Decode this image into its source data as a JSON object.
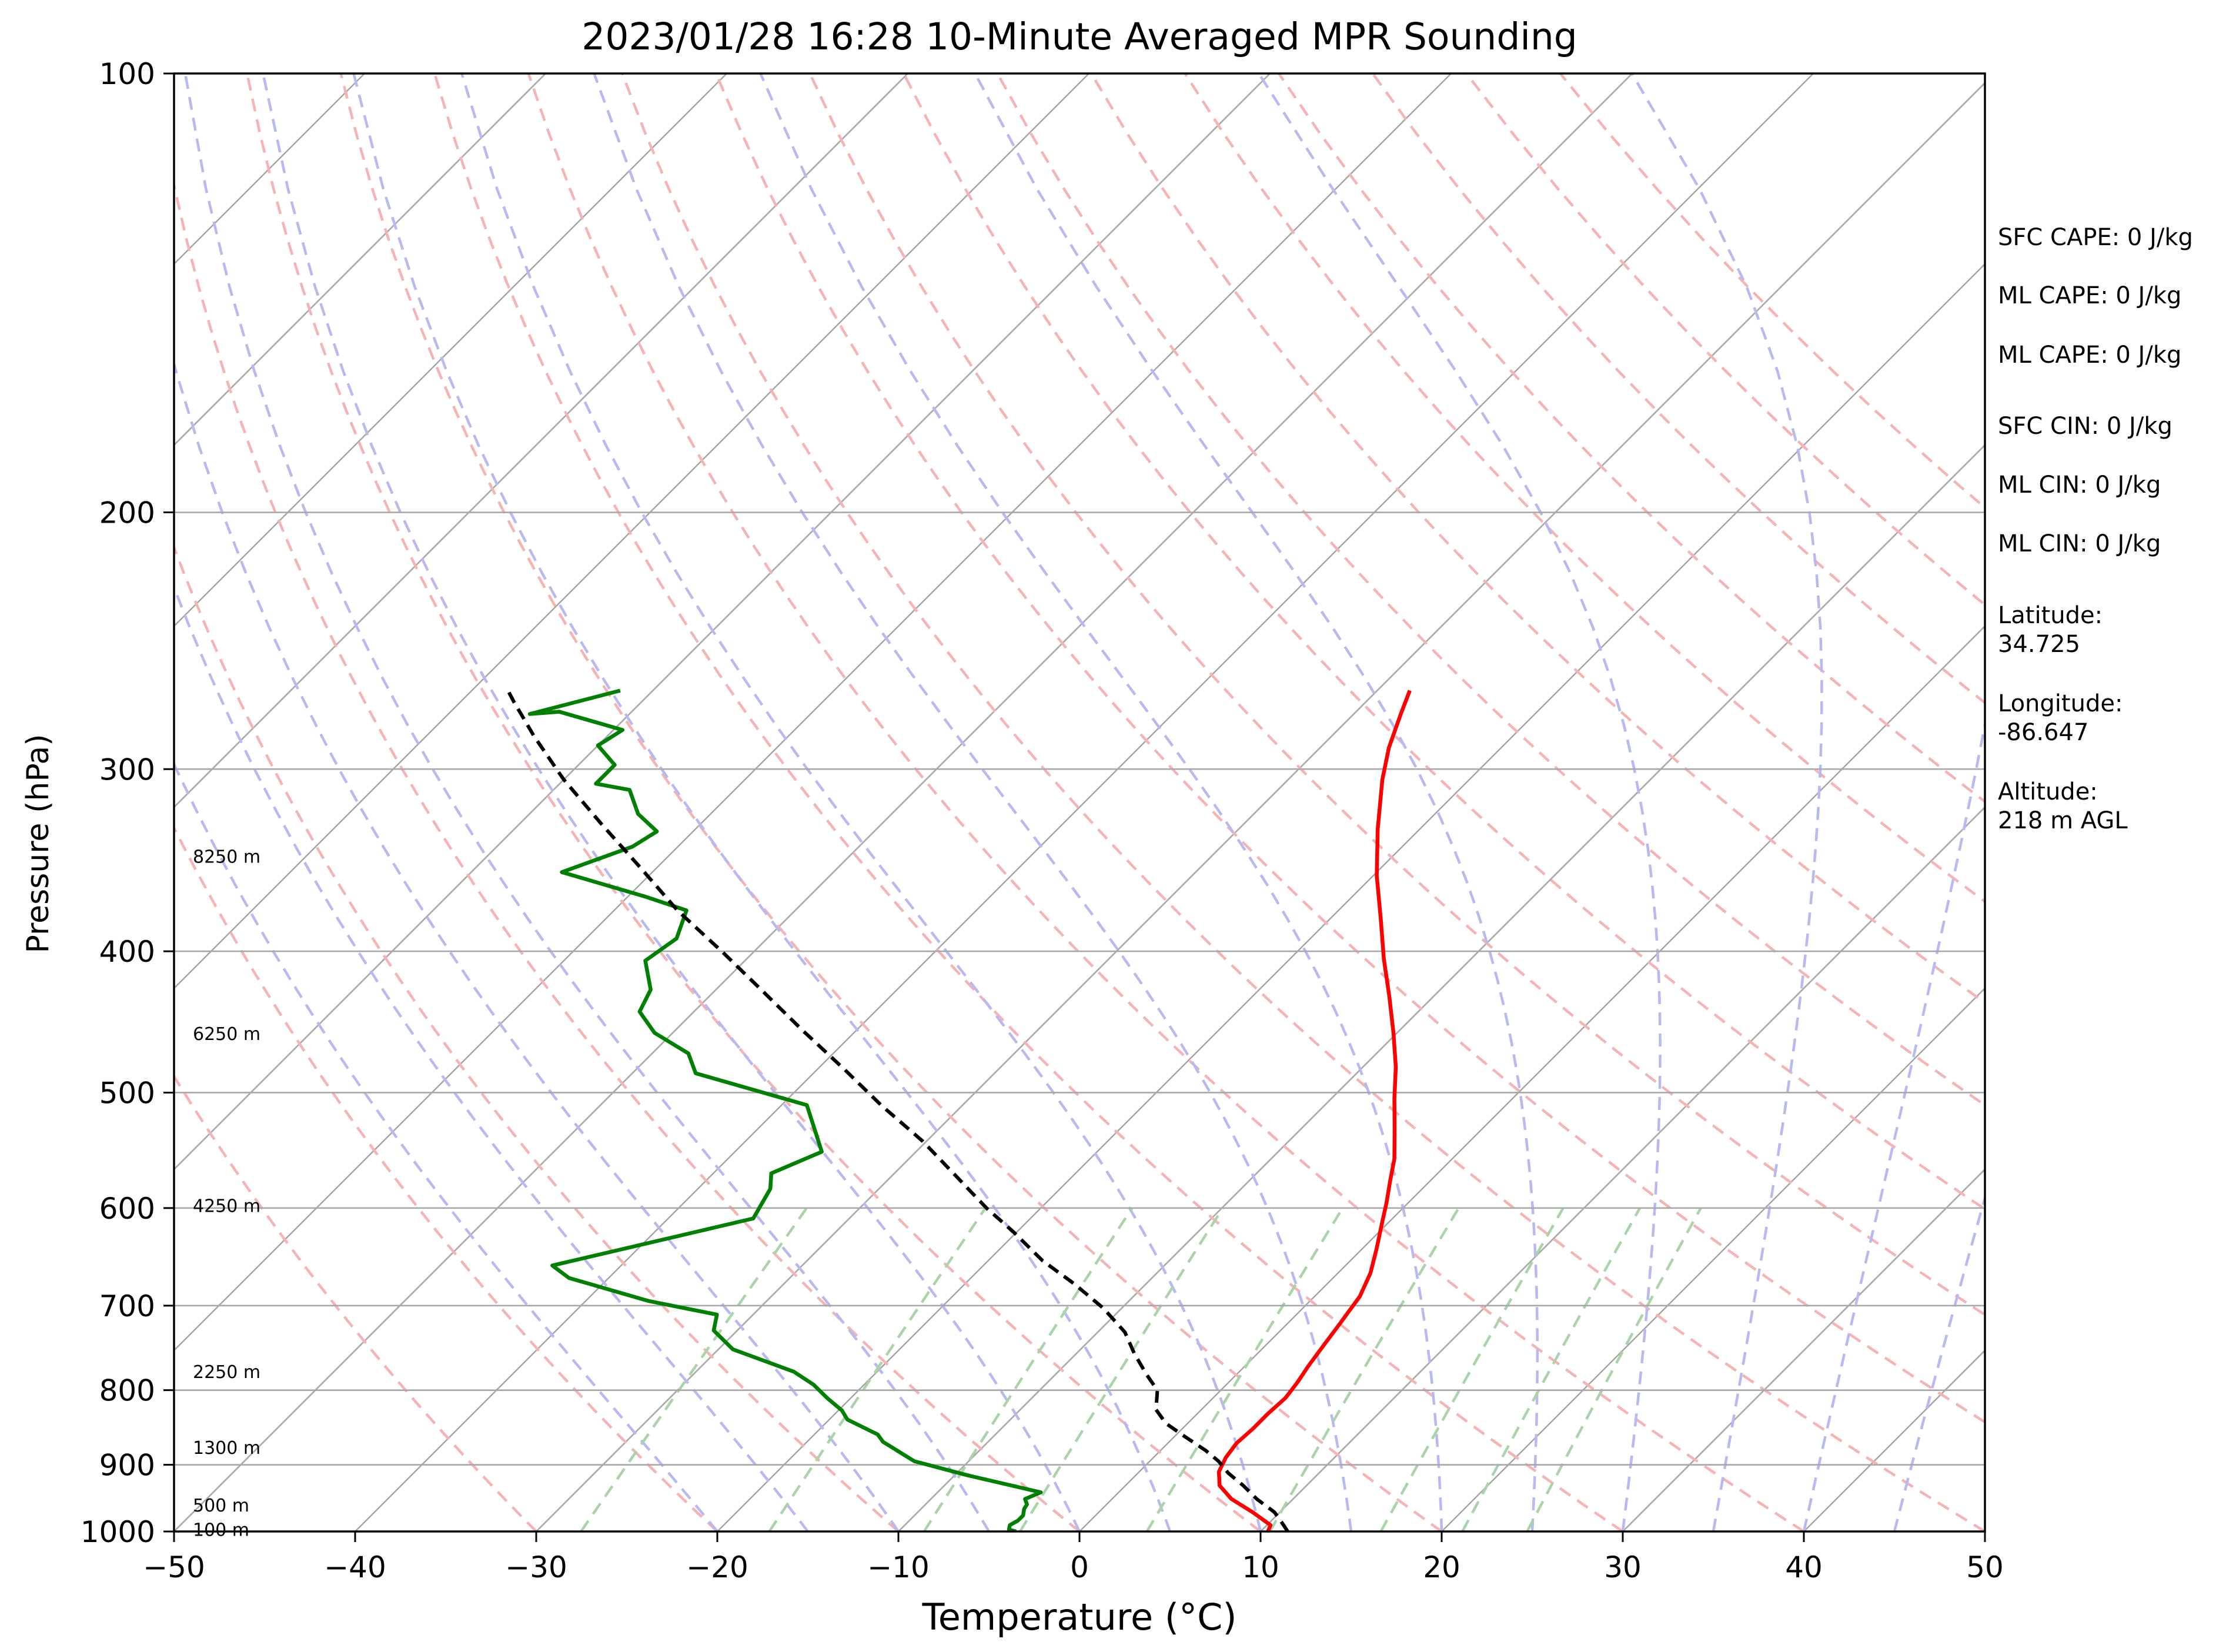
{
  "chart_data": {
    "type": "line",
    "title": "2023/01/28 16:28 10-Minute Averaged MPR Sounding",
    "xlabel": "Temperature (°C)",
    "ylabel": "Pressure (hPa)",
    "xlim": [
      -50,
      50
    ],
    "ylim": [
      1000,
      100
    ],
    "y_scale": "log",
    "x_ticks": [
      -50,
      -40,
      -30,
      -20,
      -10,
      0,
      10,
      20,
      30,
      40,
      50
    ],
    "y_ticks": [
      100,
      200,
      300,
      400,
      500,
      600,
      700,
      800,
      900,
      1000
    ],
    "x_tick_labels": [
      "−50",
      "−40",
      "−30",
      "−20",
      "−10",
      "0",
      "10",
      "20",
      "30",
      "40",
      "50"
    ],
    "y_tick_labels": [
      "100",
      "200",
      "300",
      "400",
      "500",
      "600",
      "700",
      "800",
      "900",
      "1000"
    ],
    "skew_deg": 45,
    "grid": true,
    "reference_lines": {
      "isotherms_c": [
        -120,
        -110,
        -100,
        -90,
        -80,
        -70,
        -60,
        -50,
        -40,
        -30,
        -20,
        -10,
        0,
        10,
        20,
        30,
        40,
        50
      ],
      "dry_adiabats_c": [
        -30,
        -20,
        -10,
        0,
        10,
        20,
        30,
        40,
        50,
        60,
        70,
        80,
        90,
        100,
        110,
        120,
        130,
        140,
        150
      ],
      "moist_adiabats_c": [
        -20,
        -15,
        -10,
        -5,
        0,
        5,
        10,
        15,
        20,
        25,
        30,
        35,
        40,
        45
      ],
      "mixing_ratios_gkg": [
        0.4,
        1,
        2,
        3,
        5,
        8,
        12,
        16,
        20
      ],
      "colors": {
        "isotherm": "#a8a8a8",
        "dry_adiabat": "#f5b3b3",
        "moist_adiabat": "#b8b8f2",
        "mixing_ratio": "#a9d4a9"
      }
    },
    "series": [
      {
        "role": "temperature",
        "color": "#ff0000",
        "points": [
          [
            10.4,
            1000
          ],
          [
            10.2,
            990
          ],
          [
            8.5,
            970
          ],
          [
            6.6,
            950
          ],
          [
            5.2,
            930
          ],
          [
            4.4,
            910
          ],
          [
            4.0,
            890
          ],
          [
            3.8,
            870
          ],
          [
            3.9,
            850
          ],
          [
            3.9,
            830
          ],
          [
            4.0,
            810
          ],
          [
            3.8,
            790
          ],
          [
            3.5,
            770
          ],
          [
            3.2,
            745
          ],
          [
            2.9,
            720
          ],
          [
            2.5,
            690
          ],
          [
            1.8,
            665
          ],
          [
            0.8,
            640
          ],
          [
            -0.3,
            615
          ],
          [
            -1.2,
            595
          ],
          [
            -2.2,
            575
          ],
          [
            -3.2,
            555
          ],
          [
            -4.8,
            530
          ],
          [
            -6.5,
            505
          ],
          [
            -8.2,
            480
          ],
          [
            -10.2,
            455
          ],
          [
            -12.4,
            430
          ],
          [
            -14.8,
            405
          ],
          [
            -17.2,
            380
          ],
          [
            -19.8,
            355
          ],
          [
            -22.3,
            330
          ],
          [
            -24.8,
            305
          ],
          [
            -26.2,
            290
          ],
          [
            -27.4,
            275
          ],
          [
            -28.2,
            265
          ]
        ]
      },
      {
        "role": "dewpoint",
        "color": "#008000",
        "points": [
          [
            -3.5,
            1000
          ],
          [
            -4.0,
            997
          ],
          [
            -4.2,
            990
          ],
          [
            -4.0,
            983
          ],
          [
            -4.0,
            975
          ],
          [
            -4.3,
            965
          ],
          [
            -4.4,
            958
          ],
          [
            -4.8,
            950
          ],
          [
            -4.3,
            940
          ],
          [
            -9.3,
            915
          ],
          [
            -13.0,
            895
          ],
          [
            -15.8,
            868
          ],
          [
            -16.5,
            858
          ],
          [
            -19.0,
            838
          ],
          [
            -19.8,
            826
          ],
          [
            -21.3,
            810
          ],
          [
            -22.8,
            793
          ],
          [
            -24.6,
            777
          ],
          [
            -29.2,
            750
          ],
          [
            -31.3,
            728
          ],
          [
            -32.0,
            710
          ],
          [
            -36.5,
            695
          ],
          [
            -42.2,
            670
          ],
          [
            -43.8,
            657
          ],
          [
            -35.3,
            610
          ],
          [
            -36.0,
            582
          ],
          [
            -36.8,
            568
          ],
          [
            -35.2,
            549
          ],
          [
            -37.0,
            528
          ],
          [
            -38.6,
            510
          ],
          [
            -46.5,
            485
          ],
          [
            -48.0,
            470
          ],
          [
            -51.0,
            455
          ],
          [
            -53.0,
            440
          ],
          [
            -53.6,
            425
          ],
          [
            -55.5,
            406
          ],
          [
            -55.0,
            392
          ],
          [
            -56.0,
            375
          ],
          [
            -59.0,
            367
          ],
          [
            -65.0,
            353
          ],
          [
            -62.5,
            339
          ],
          [
            -62.0,
            331
          ],
          [
            -64.0,
            322
          ],
          [
            -65.8,
            310
          ],
          [
            -68.0,
            307
          ],
          [
            -68.0,
            298
          ],
          [
            -70.0,
            289
          ],
          [
            -69.5,
            282
          ],
          [
            -74.0,
            274
          ],
          [
            -75.5,
            275
          ],
          [
            -71.8,
            265
          ]
        ]
      },
      {
        "role": "parcel",
        "color": "#000000",
        "dashed": true,
        "points": [
          [
            11.5,
            1000
          ],
          [
            10.5,
            983
          ],
          [
            9.7,
            970
          ],
          [
            8.0,
            950
          ],
          [
            6.5,
            930
          ],
          [
            5.0,
            912
          ],
          [
            3.8,
            895
          ],
          [
            2.5,
            880
          ],
          [
            0.5,
            860
          ],
          [
            -1.2,
            843
          ],
          [
            -2.5,
            825
          ],
          [
            -3.5,
            800
          ],
          [
            -5.0,
            780
          ],
          [
            -6.8,
            755
          ],
          [
            -8.5,
            730
          ],
          [
            -11.0,
            703
          ],
          [
            -14.0,
            676
          ],
          [
            -17.0,
            652
          ],
          [
            -20.2,
            623
          ],
          [
            -23.0,
            600
          ],
          [
            -26.5,
            570
          ],
          [
            -30.2,
            540
          ],
          [
            -34.5,
            510
          ],
          [
            -38.5,
            482
          ],
          [
            -43.0,
            453
          ],
          [
            -47.5,
            425
          ],
          [
            -51.8,
            400
          ],
          [
            -56.5,
            375
          ],
          [
            -61.0,
            350
          ],
          [
            -65.5,
            327
          ],
          [
            -70.0,
            305
          ],
          [
            -74.0,
            285
          ],
          [
            -77.0,
            270
          ],
          [
            -78.0,
            265
          ]
        ]
      }
    ],
    "height_labels": [
      "8250 m",
      "6250 m",
      "4250 m",
      "2250 m",
      "1300 m",
      "500 m",
      "100 m"
    ],
    "height_label_pressures": [
      344,
      455,
      597,
      776,
      875,
      958,
      996
    ],
    "annotations": [
      "SFC CAPE: 0 J/kg",
      "ML CAPE: 0 J/kg",
      "ML CAPE: 0 J/kg",
      "SFC CIN: 0 J/kg",
      "ML CIN: 0 J/kg",
      "ML CIN: 0 J/kg"
    ],
    "location": {
      "lat_label": "Latitude:",
      "lat_value": "34.725",
      "lon_label": "Longitude:",
      "lon_value": "-86.647",
      "alt_label": "Altitude:",
      "alt_value": "218 m AGL"
    }
  }
}
